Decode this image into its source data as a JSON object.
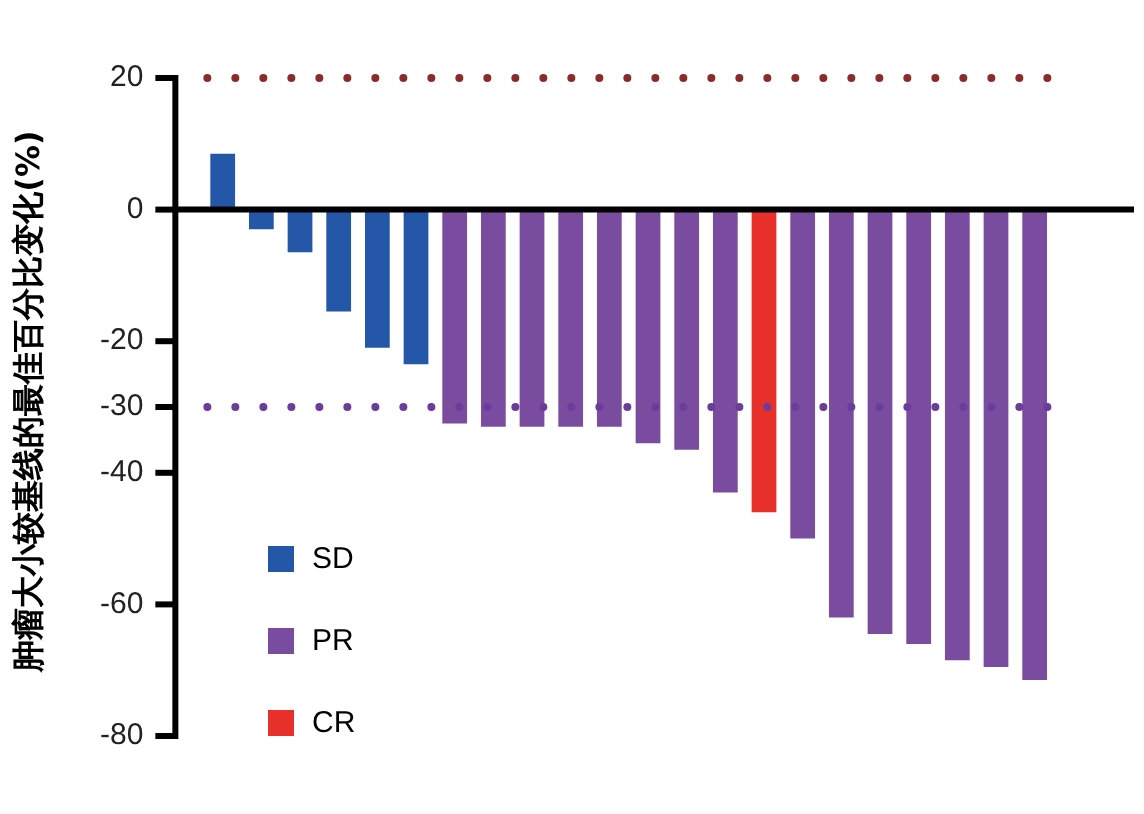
{
  "chart_data": {
    "type": "bar",
    "ylabel": "肿瘤大小较基线的最佳百分比变化(%)",
    "categories": [
      null,
      null,
      null,
      null,
      null,
      null,
      null,
      null,
      null,
      null,
      null,
      null,
      null,
      null,
      null,
      null,
      null,
      null,
      null,
      null,
      null,
      null
    ],
    "series": [
      {
        "name": "SD",
        "color": "#2457a8",
        "values": [
          8.5,
          -3,
          -6.5,
          -15.5,
          -21,
          -23.5,
          null,
          null,
          null,
          null,
          null,
          null,
          null,
          null,
          null,
          null,
          null,
          null,
          null,
          null,
          null,
          null
        ]
      },
      {
        "name": "PR",
        "color": "#7a4c9f",
        "values": [
          null,
          null,
          null,
          null,
          null,
          null,
          -32.5,
          -33,
          -33,
          -33,
          -33,
          -35.5,
          -36.5,
          -43,
          null,
          -50,
          -62,
          -64.5,
          -66,
          -68.5,
          -69.5,
          -71.5
        ]
      },
      {
        "name": "CR",
        "color": "#e8302a",
        "values": [
          null,
          null,
          null,
          null,
          null,
          null,
          null,
          null,
          null,
          null,
          null,
          null,
          null,
          null,
          -46,
          null,
          null,
          null,
          null,
          null,
          null,
          null
        ]
      }
    ],
    "ylim": [
      -80,
      20
    ],
    "yticks": [
      20,
      0,
      -20,
      -30,
      -40,
      -60,
      -80
    ],
    "grid": false,
    "legend": "bottom left",
    "ref_lines": [
      {
        "axis": "y",
        "value": 20,
        "color": "#8b2b2b",
        "line_style": "dotted"
      },
      {
        "axis": "y",
        "value": -30,
        "color": "#6b3c9c",
        "line_style": "dotted"
      }
    ]
  }
}
